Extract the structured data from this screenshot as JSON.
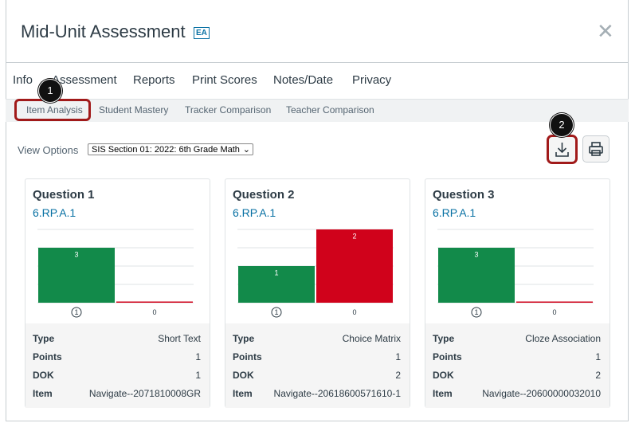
{
  "header": {
    "title": "Mid-Unit Assessment",
    "badge": "EA"
  },
  "tabs": [
    "Info",
    "Assessment",
    "Reports",
    "Print Scores",
    "Notes/Date",
    "Privacy"
  ],
  "subtabs": [
    "Item Analysis",
    "Student Mastery",
    "Tracker Comparison",
    "Teacher Comparison"
  ],
  "callouts": [
    "1",
    "2"
  ],
  "view_options": {
    "label": "View Options",
    "selected": "SIS Section 01: 2022: 6th Grade Math"
  },
  "questions": [
    {
      "title": "Question 1",
      "standard": "6.RP.A.1",
      "chart": {
        "type": "bar",
        "categories": [
          "1",
          "0"
        ],
        "correct": "1",
        "values": [
          3,
          0
        ],
        "colors": [
          "#128a4a",
          "#d0021b"
        ],
        "ylim": [
          0,
          4
        ],
        "yticks": [
          0,
          1,
          2,
          3,
          4
        ],
        "grid": true
      },
      "details": [
        [
          "Type",
          "Short Text"
        ],
        [
          "Points",
          1
        ],
        [
          "DOK",
          1
        ],
        [
          "Item",
          "Navigate--2071810008GR"
        ]
      ]
    },
    {
      "title": "Question 2",
      "standard": "6.RP.A.1",
      "chart": {
        "type": "bar",
        "categories": [
          "1",
          "0"
        ],
        "correct": "1",
        "values": [
          1,
          2
        ],
        "colors": [
          "#128a4a",
          "#d0021b"
        ],
        "ylim": [
          0,
          2
        ],
        "yticks": [
          0,
          0.5,
          1,
          1.5,
          2
        ],
        "grid": true
      },
      "details": [
        [
          "Type",
          "Choice Matrix"
        ],
        [
          "Points",
          1
        ],
        [
          "DOK",
          2
        ],
        [
          "Item",
          "Navigate--20618600571610-1"
        ]
      ]
    },
    {
      "title": "Question 3",
      "standard": "6.RP.A.1",
      "chart": {
        "type": "bar",
        "categories": [
          "1",
          "0"
        ],
        "correct": "1",
        "values": [
          3,
          0
        ],
        "colors": [
          "#128a4a",
          "#d0021b"
        ],
        "ylim": [
          0,
          4
        ],
        "yticks": [
          0,
          1,
          2,
          3,
          4
        ],
        "grid": true
      },
      "details": [
        [
          "Type",
          "Cloze Association"
        ],
        [
          "Points",
          1
        ],
        [
          "DOK",
          2
        ],
        [
          "Item",
          "Navigate--20600000032010"
        ]
      ]
    }
  ]
}
